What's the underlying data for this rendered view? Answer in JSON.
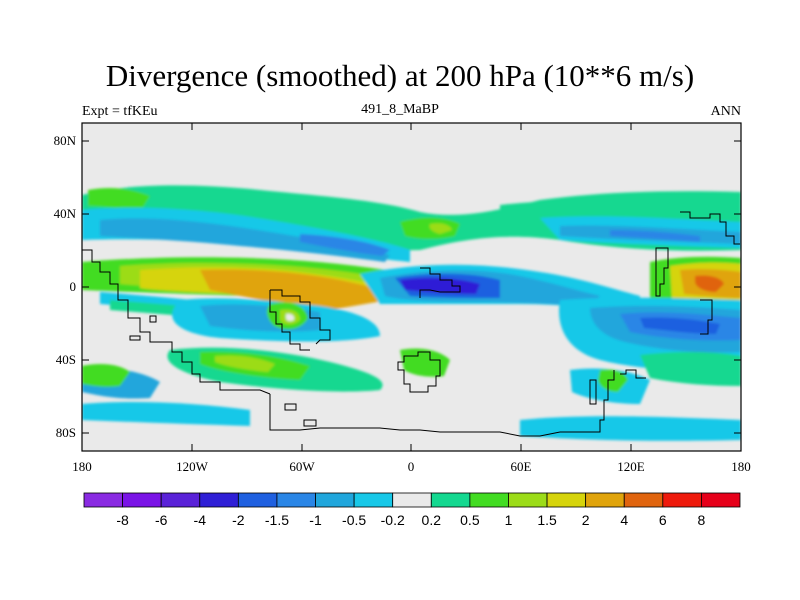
{
  "title": "Divergence (smoothed) at 200 hPa (10**6 m/s)",
  "subtitle_left": "Expt = tfKEu",
  "subtitle_center": "491_8_MaBP",
  "subtitle_right": "ANN",
  "map": {
    "projection": "cylindrical equidistant",
    "lon_range": [
      -180,
      180
    ],
    "lat_range": [
      -90,
      90
    ],
    "x_ticks": [
      "180",
      "120W",
      "60W",
      "0",
      "60E",
      "120E",
      "180"
    ],
    "y_ticks": [
      "80N",
      "40N",
      "0",
      "40S",
      "80S"
    ],
    "background_color": "#eaeaea"
  },
  "colorbar": {
    "labels": [
      "-8",
      "-6",
      "-4",
      "-2",
      "-1.5",
      "-1",
      "-0.5",
      "-0.2",
      "0.2",
      "0.5",
      "1",
      "1.5",
      "2",
      "4",
      "6",
      "8"
    ],
    "colors": [
      "#8a2be2",
      "#7a14e6",
      "#5a22d8",
      "#2f1fd6",
      "#1f60e0",
      "#2a86e6",
      "#20a6dc",
      "#18c8e8",
      "#eaeaea",
      "#14d890",
      "#42dc22",
      "#9cdc18",
      "#d6d40c",
      "#e0a40c",
      "#e0640e",
      "#ee1a0c",
      "#e6001a"
    ]
  }
}
